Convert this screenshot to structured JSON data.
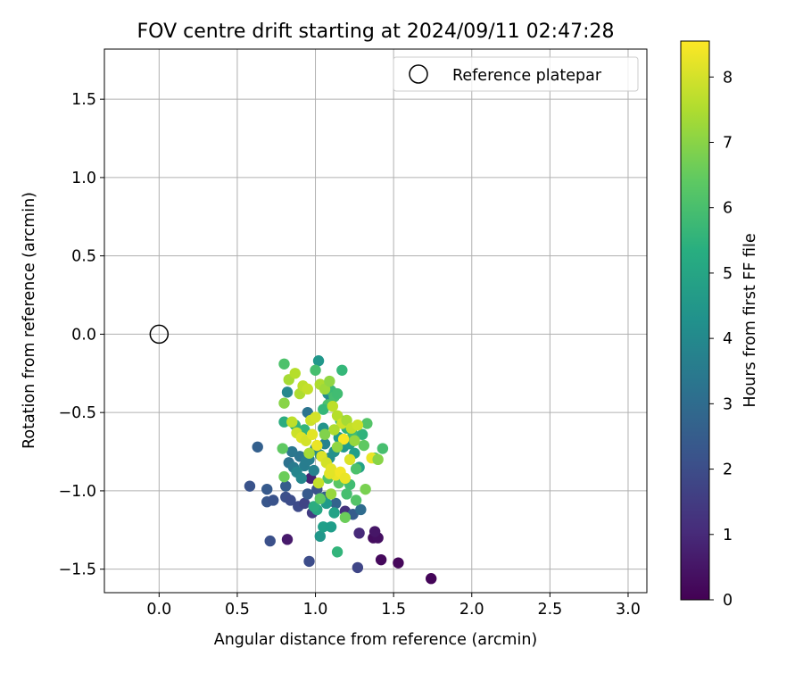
{
  "chart_data": {
    "type": "scatter",
    "title": "FOV centre drift starting at 2024/09/11 02:47:28",
    "xlabel": "Angular distance from reference (arcmin)",
    "ylabel": "Rotation from reference (arcmin)",
    "xlim": [
      -0.35,
      3.12
    ],
    "ylim": [
      -1.65,
      1.82
    ],
    "xticks": [
      0.0,
      0.5,
      1.0,
      1.5,
      2.0,
      2.5,
      3.0
    ],
    "xtick_labels": [
      "0.0",
      "0.5",
      "1.0",
      "1.5",
      "2.0",
      "2.5",
      "3.0"
    ],
    "yticks": [
      -1.5,
      -1.0,
      -0.5,
      0.0,
      0.5,
      1.0,
      1.5
    ],
    "ytick_labels": [
      "−1.5",
      "−1.0",
      "−0.5",
      "0.0",
      "0.5",
      "1.0",
      "1.5"
    ],
    "grid": true,
    "legend": {
      "placement": "top-right",
      "entries": [
        {
          "label": "Reference platepar",
          "marker": "open-circle"
        }
      ]
    },
    "reference_point": {
      "x": 0.0,
      "y": 0.0
    },
    "colorbar": {
      "label": "Hours from first FF file",
      "colormap": "viridis",
      "range": [
        0,
        8.55
      ],
      "ticks": [
        0,
        1,
        2,
        3,
        4,
        5,
        6,
        7,
        8
      ],
      "tick_labels": [
        "0",
        "1",
        "2",
        "3",
        "4",
        "5",
        "6",
        "7",
        "8"
      ]
    },
    "series": [
      {
        "columns": [
          "x",
          "y",
          "hours"
        ],
        "points": [
          [
            1.74,
            -1.56,
            0.1
          ],
          [
            1.53,
            -1.46,
            0.15
          ],
          [
            1.42,
            -1.44,
            0.2
          ],
          [
            1.37,
            -1.3,
            0.3
          ],
          [
            1.4,
            -1.3,
            0.35
          ],
          [
            1.38,
            -1.26,
            0.5
          ],
          [
            0.82,
            -1.31,
            0.6
          ],
          [
            1.28,
            -1.27,
            1.0
          ],
          [
            1.19,
            -1.13,
            1.2
          ],
          [
            0.97,
            -0.92,
            0.8
          ],
          [
            0.98,
            -1.14,
            1.5
          ],
          [
            1.27,
            -1.49,
            1.8
          ],
          [
            0.96,
            -1.45,
            2.0
          ],
          [
            0.71,
            -1.32,
            2.1
          ],
          [
            0.69,
            -1.07,
            2.3
          ],
          [
            0.73,
            -1.06,
            2.2
          ],
          [
            0.81,
            -1.04,
            2.1
          ],
          [
            0.84,
            -1.06,
            2.0
          ],
          [
            0.89,
            -1.1,
            1.9
          ],
          [
            0.93,
            -1.08,
            1.7
          ],
          [
            0.58,
            -0.97,
            2.2
          ],
          [
            0.69,
            -0.99,
            2.4
          ],
          [
            0.81,
            -0.97,
            2.5
          ],
          [
            0.63,
            -0.72,
            2.6
          ],
          [
            0.95,
            -1.02,
            2.4
          ],
          [
            1.24,
            -1.15,
            2.5
          ],
          [
            1.29,
            -1.12,
            3.0
          ],
          [
            1.01,
            -0.99,
            2.2
          ],
          [
            1.06,
            -1.04,
            2.6
          ],
          [
            1.13,
            -1.08,
            2.7
          ],
          [
            0.83,
            -0.82,
            3.2
          ],
          [
            0.86,
            -0.85,
            3.5
          ],
          [
            0.9,
            -0.78,
            3.3
          ],
          [
            0.93,
            -0.84,
            3.6
          ],
          [
            0.96,
            -0.8,
            3.7
          ],
          [
            0.99,
            -0.87,
            3.8
          ],
          [
            0.85,
            -0.75,
            3.4
          ],
          [
            0.88,
            -0.88,
            3.9
          ],
          [
            0.91,
            -0.92,
            4.0
          ],
          [
            0.94,
            -0.81,
            3.6
          ],
          [
            1.0,
            -0.73,
            3.9
          ],
          [
            1.03,
            -0.77,
            4.1
          ],
          [
            1.06,
            -0.7,
            3.8
          ],
          [
            1.09,
            -0.79,
            4.2
          ],
          [
            1.12,
            -0.75,
            4.3
          ],
          [
            0.95,
            -0.5,
            3.3
          ],
          [
            0.82,
            -0.37,
            4.0
          ],
          [
            1.02,
            -0.17,
            4.5
          ],
          [
            1.08,
            -0.38,
            4.2
          ],
          [
            1.1,
            -0.42,
            4.0
          ],
          [
            1.05,
            -0.6,
            4.4
          ],
          [
            1.15,
            -0.66,
            4.6
          ],
          [
            1.18,
            -0.72,
            4.5
          ],
          [
            1.22,
            -0.7,
            4.7
          ],
          [
            1.25,
            -0.76,
            4.8
          ],
          [
            1.28,
            -0.85,
            4.9
          ],
          [
            1.03,
            -1.29,
            4.5
          ],
          [
            1.05,
            -1.23,
            4.8
          ],
          [
            1.1,
            -1.23,
            4.7
          ],
          [
            1.12,
            -1.14,
            4.9
          ],
          [
            1.07,
            -1.08,
            4.6
          ],
          [
            1.01,
            -1.12,
            5.1
          ],
          [
            0.99,
            -1.1,
            5.3
          ],
          [
            1.14,
            -1.39,
            5.6
          ],
          [
            1.17,
            -0.23,
            5.7
          ],
          [
            0.8,
            -0.19,
            6.1
          ],
          [
            1.0,
            -0.23,
            6.0
          ],
          [
            0.8,
            -0.56,
            5.3
          ],
          [
            0.87,
            -0.58,
            5.5
          ],
          [
            0.93,
            -0.61,
            5.6
          ],
          [
            1.1,
            -0.36,
            5.8
          ],
          [
            1.12,
            -0.4,
            6.0
          ],
          [
            1.14,
            -0.38,
            5.9
          ],
          [
            1.08,
            -0.45,
            6.1
          ],
          [
            1.05,
            -0.48,
            5.7
          ],
          [
            1.16,
            -0.55,
            5.6
          ],
          [
            1.2,
            -0.6,
            5.5
          ],
          [
            1.24,
            -0.64,
            5.9
          ],
          [
            1.3,
            -0.64,
            5.5
          ],
          [
            1.33,
            -0.57,
            6.2
          ],
          [
            1.43,
            -0.73,
            6.0
          ],
          [
            1.38,
            -0.79,
            6.3
          ],
          [
            1.31,
            -0.71,
            6.4
          ],
          [
            1.26,
            -0.86,
            6.1
          ],
          [
            1.22,
            -0.96,
            5.9
          ],
          [
            1.26,
            -1.06,
            6.2
          ],
          [
            1.2,
            -1.02,
            6.0
          ],
          [
            1.15,
            -0.95,
            6.3
          ],
          [
            1.08,
            -0.92,
            6.1
          ],
          [
            1.03,
            -1.05,
            6.4
          ],
          [
            0.79,
            -0.73,
            6.4
          ],
          [
            0.8,
            -0.91,
            6.6
          ],
          [
            1.19,
            -1.17,
            6.6
          ],
          [
            1.32,
            -0.99,
            6.8
          ],
          [
            1.1,
            -1.02,
            7.2
          ],
          [
            0.8,
            -0.44,
            7.0
          ],
          [
            0.83,
            -0.29,
            7.4
          ],
          [
            0.87,
            -0.25,
            7.6
          ],
          [
            0.9,
            -0.38,
            7.5
          ],
          [
            0.92,
            -0.33,
            7.7
          ],
          [
            0.95,
            -0.35,
            7.8
          ],
          [
            0.97,
            -0.55,
            7.9
          ],
          [
            1.0,
            -0.53,
            8.0
          ],
          [
            1.03,
            -0.32,
            7.5
          ],
          [
            1.06,
            -0.35,
            7.3
          ],
          [
            1.09,
            -0.3,
            7.1
          ],
          [
            1.11,
            -0.46,
            7.7
          ],
          [
            1.14,
            -0.52,
            7.6
          ],
          [
            1.17,
            -0.57,
            7.9
          ],
          [
            1.2,
            -0.55,
            7.4
          ],
          [
            1.23,
            -0.6,
            7.8
          ],
          [
            1.27,
            -0.58,
            7.9
          ],
          [
            0.85,
            -0.56,
            7.7
          ],
          [
            0.88,
            -0.63,
            7.9
          ],
          [
            0.91,
            -0.66,
            8.1
          ],
          [
            0.94,
            -0.68,
            8.0
          ],
          [
            0.98,
            -0.64,
            8.2
          ],
          [
            1.01,
            -0.71,
            8.3
          ],
          [
            1.04,
            -0.78,
            8.1
          ],
          [
            1.07,
            -0.82,
            8.0
          ],
          [
            1.1,
            -0.86,
            8.2
          ],
          [
            1.13,
            -0.9,
            8.3
          ],
          [
            1.16,
            -0.88,
            8.4
          ],
          [
            1.19,
            -0.92,
            8.3
          ],
          [
            1.22,
            -0.8,
            8.1
          ],
          [
            1.18,
            -0.67,
            8.5
          ],
          [
            1.36,
            -0.79,
            8.3
          ],
          [
            1.4,
            -0.8,
            7.0
          ],
          [
            1.09,
            -0.89,
            8.2
          ],
          [
            1.02,
            -0.95,
            7.8
          ],
          [
            1.12,
            -0.61,
            7.5
          ],
          [
            1.25,
            -0.68,
            7.2
          ],
          [
            0.96,
            -0.76,
            7.4
          ],
          [
            1.06,
            -0.64,
            6.9
          ],
          [
            1.14,
            -0.72,
            7.1
          ]
        ]
      }
    ]
  }
}
